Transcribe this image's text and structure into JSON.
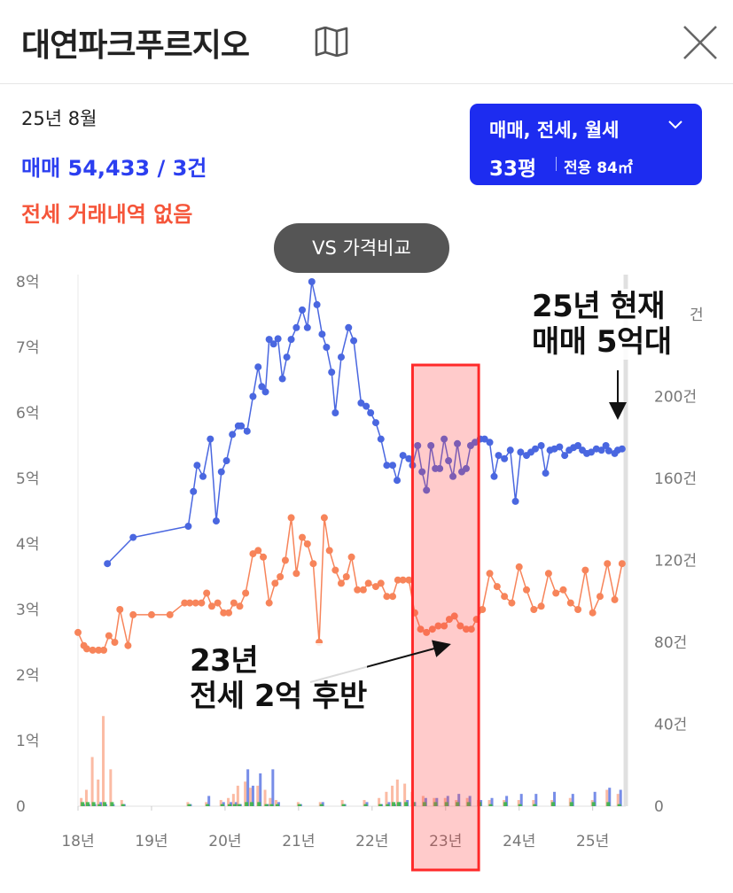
{
  "header": {
    "title": "대연파크푸르지오",
    "map_icon": "map-icon",
    "close_icon": "close-icon"
  },
  "summary": {
    "date": "25년 8월",
    "sale_text": "매매 54,433 / 3건",
    "jeonse_text": "전세 거래내역 없음"
  },
  "filter": {
    "types": "매매, 전세, 월세",
    "size": "33평",
    "area": "전용 84㎡"
  },
  "vs_button": "VS 가격비교",
  "annotations": {
    "current": [
      "25년 현재",
      "매매 5억대"
    ],
    "jeonse": [
      "23년",
      "전세 2억 후반"
    ]
  },
  "colors": {
    "sale": "#4a67e0",
    "jeonse": "#f7845a",
    "volume_green": "#3bb54a",
    "highlight": "#ff2a2a"
  },
  "chart_data": {
    "type": "line",
    "x_tick_labels": [
      "18년",
      "19년",
      "20년",
      "21년",
      "22년",
      "23년",
      "24년",
      "25년"
    ],
    "x_range": [
      2018.0,
      2025.45
    ],
    "y_left_ticks": [
      {
        "v": 0,
        "label": "0"
      },
      {
        "v": 1,
        "label": "1억"
      },
      {
        "v": 2,
        "label": "2억"
      },
      {
        "v": 3,
        "label": "3억"
      },
      {
        "v": 4,
        "label": "4억"
      },
      {
        "v": 5,
        "label": "5억"
      },
      {
        "v": 6,
        "label": "6억"
      },
      {
        "v": 7,
        "label": "7억"
      },
      {
        "v": 8,
        "label": "8억"
      }
    ],
    "y_left_range": [
      0,
      8
    ],
    "y_right_ticks": [
      {
        "v": 0,
        "label": "0"
      },
      {
        "v": 40,
        "label": "40건"
      },
      {
        "v": 80,
        "label": "80건"
      },
      {
        "v": 120,
        "label": "120건"
      },
      {
        "v": 160,
        "label": "160건"
      },
      {
        "v": 200,
        "label": "200건"
      },
      {
        "v": 240,
        "label": "건"
      }
    ],
    "y_right_range": [
      0,
      256
    ],
    "highlight_range": [
      2022.55,
      2023.45
    ],
    "series": [
      {
        "name": "매매",
        "x": [
          2018.4,
          2018.75,
          2019.5,
          2019.57,
          2019.62,
          2019.7,
          2019.8,
          2019.88,
          2019.95,
          2020.02,
          2020.1,
          2020.18,
          2020.22,
          2020.3,
          2020.38,
          2020.45,
          2020.5,
          2020.55,
          2020.6,
          2020.66,
          2020.72,
          2020.78,
          2020.84,
          2020.9,
          2020.97,
          2021.05,
          2021.12,
          2021.18,
          2021.25,
          2021.32,
          2021.38,
          2021.45,
          2021.5,
          2021.58,
          2021.68,
          2021.75,
          2021.85,
          2021.92,
          2021.98,
          2022.05,
          2022.12,
          2022.2,
          2022.28,
          2022.34,
          2022.42,
          2022.5,
          2022.55,
          2022.62,
          2022.68,
          2022.74,
          2022.8,
          2022.86,
          2022.92,
          2022.98,
          2023.04,
          2023.1,
          2023.16,
          2023.22,
          2023.28,
          2023.34,
          2023.4,
          2023.47,
          2023.53,
          2023.6,
          2023.66,
          2023.72,
          2023.8,
          2023.88,
          2023.95,
          2024.02,
          2024.1,
          2024.16,
          2024.22,
          2024.3,
          2024.36,
          2024.42,
          2024.48,
          2024.55,
          2024.62,
          2024.68,
          2024.74,
          2024.8,
          2024.86,
          2024.92,
          2024.98,
          2025.05,
          2025.12,
          2025.18,
          2025.22,
          2025.3,
          2025.34,
          2025.4
        ],
        "values": [
          3.7,
          4.1,
          4.27,
          4.8,
          5.2,
          5.03,
          5.6,
          4.35,
          5.1,
          5.27,
          5.67,
          5.8,
          5.8,
          5.72,
          6.25,
          6.7,
          6.4,
          6.32,
          7.12,
          7.05,
          7.13,
          6.52,
          6.85,
          7.12,
          7.3,
          7.57,
          7.3,
          8.0,
          7.65,
          7.2,
          7.0,
          6.62,
          6.0,
          6.85,
          7.3,
          7.1,
          6.15,
          6.1,
          6.0,
          5.85,
          5.6,
          5.2,
          5.2,
          4.97,
          5.35,
          5.3,
          5.2,
          5.5,
          5.1,
          4.82,
          5.5,
          5.15,
          5.15,
          5.6,
          5.27,
          5.03,
          5.53,
          5.1,
          5.15,
          5.5,
          5.55,
          5.6,
          5.6,
          5.55,
          5.03,
          5.35,
          5.3,
          5.43,
          4.65,
          5.4,
          5.35,
          5.4,
          5.45,
          5.5,
          5.08,
          5.43,
          5.45,
          5.48,
          5.35,
          5.43,
          5.47,
          5.5,
          5.43,
          5.38,
          5.4,
          5.45,
          5.43,
          5.5,
          5.42,
          5.38,
          5.43,
          5.45
        ]
      },
      {
        "name": "전세",
        "x": [
          2018.0,
          2018.08,
          2018.12,
          2018.2,
          2018.28,
          2018.35,
          2018.42,
          2018.5,
          2018.57,
          2018.68,
          2018.75,
          2019.0,
          2019.25,
          2019.45,
          2019.52,
          2019.6,
          2019.68,
          2019.75,
          2019.82,
          2019.9,
          2019.98,
          2020.05,
          2020.12,
          2020.2,
          2020.28,
          2020.38,
          2020.45,
          2020.52,
          2020.6,
          2020.68,
          2020.75,
          2020.82,
          2020.9,
          2020.97,
          2021.05,
          2021.12,
          2021.2,
          2021.28,
          2021.35,
          2021.42,
          2021.5,
          2021.58,
          2021.65,
          2021.72,
          2021.8,
          2021.88,
          2021.95,
          2022.05,
          2022.12,
          2022.2,
          2022.28,
          2022.35,
          2022.42,
          2022.5,
          2022.58,
          2022.66,
          2022.74,
          2022.82,
          2022.9,
          2022.98,
          2023.05,
          2023.12,
          2023.2,
          2023.28,
          2023.35,
          2023.42,
          2023.5,
          2023.6,
          2023.7,
          2023.8,
          2023.9,
          2024.0,
          2024.1,
          2024.2,
          2024.3,
          2024.4,
          2024.5,
          2024.6,
          2024.7,
          2024.8,
          2024.9,
          2025.0,
          2025.1,
          2025.2,
          2025.3,
          2025.4
        ],
        "values": [
          2.65,
          2.45,
          2.4,
          2.38,
          2.38,
          2.38,
          2.6,
          2.5,
          3.0,
          2.45,
          2.92,
          2.92,
          2.92,
          3.1,
          3.1,
          3.1,
          3.1,
          3.25,
          3.05,
          3.1,
          2.95,
          2.95,
          3.1,
          3.05,
          3.25,
          3.85,
          3.9,
          3.8,
          3.1,
          3.4,
          3.5,
          3.75,
          4.4,
          3.55,
          4.1,
          4.0,
          3.7,
          2.5,
          4.4,
          3.9,
          3.6,
          3.4,
          3.5,
          3.8,
          3.3,
          3.3,
          3.4,
          3.35,
          3.4,
          3.2,
          3.2,
          3.45,
          3.45,
          3.45,
          2.95,
          2.7,
          2.65,
          2.7,
          2.75,
          2.75,
          2.85,
          2.9,
          2.75,
          2.7,
          2.7,
          2.85,
          3.0,
          3.55,
          3.35,
          3.2,
          3.1,
          3.65,
          3.3,
          3.0,
          3.05,
          3.55,
          3.25,
          3.3,
          3.1,
          3.0,
          3.6,
          2.95,
          3.2,
          3.7,
          3.15,
          3.7
        ]
      }
    ],
    "volume_bars": {
      "note": "monthly transaction counts on right axis (건)",
      "x": [
        2018.05,
        2018.12,
        2018.2,
        2018.28,
        2018.35,
        2018.45,
        2018.6,
        2019.5,
        2019.75,
        2019.95,
        2020.05,
        2020.12,
        2020.18,
        2020.28,
        2020.35,
        2020.45,
        2020.55,
        2020.62,
        2020.7,
        2021.0,
        2021.3,
        2021.6,
        2021.9,
        2022.1,
        2022.2,
        2022.28,
        2022.35,
        2022.45,
        2022.55,
        2022.7,
        2022.85,
        2023.0,
        2023.15,
        2023.3,
        2023.45,
        2023.6,
        2023.8,
        2024.0,
        2024.2,
        2024.45,
        2024.7,
        2025.0,
        2025.2,
        2025.35
      ],
      "jeonse": [
        4,
        8,
        24,
        13,
        44,
        18,
        3,
        2,
        2,
        3,
        4,
        6,
        10,
        12,
        9,
        10,
        8,
        4,
        3,
        2,
        2,
        3,
        3,
        4,
        7,
        10,
        13,
        11,
        7,
        5,
        4,
        4,
        3,
        4,
        3,
        3,
        3,
        3,
        3,
        3,
        4,
        3,
        8,
        6
      ],
      "sale": [
        1,
        1,
        1,
        2,
        1,
        1,
        1,
        1,
        5,
        2,
        2,
        2,
        1,
        18,
        10,
        16,
        1,
        18,
        2,
        1,
        2,
        1,
        2,
        1,
        2,
        1,
        2,
        3,
        2,
        4,
        4,
        5,
        6,
        5,
        3,
        4,
        5,
        6,
        6,
        7,
        6,
        7,
        9,
        8
      ],
      "other": [
        2,
        2,
        2,
        1,
        2,
        2,
        1,
        1,
        1,
        1,
        1,
        1,
        1,
        2,
        2,
        2,
        1,
        1,
        1,
        1,
        1,
        1,
        1,
        1,
        1,
        2,
        2,
        2,
        2,
        2,
        2,
        2,
        2,
        2,
        2,
        1,
        2,
        1,
        1,
        2,
        2,
        2,
        2,
        1
      ]
    }
  }
}
